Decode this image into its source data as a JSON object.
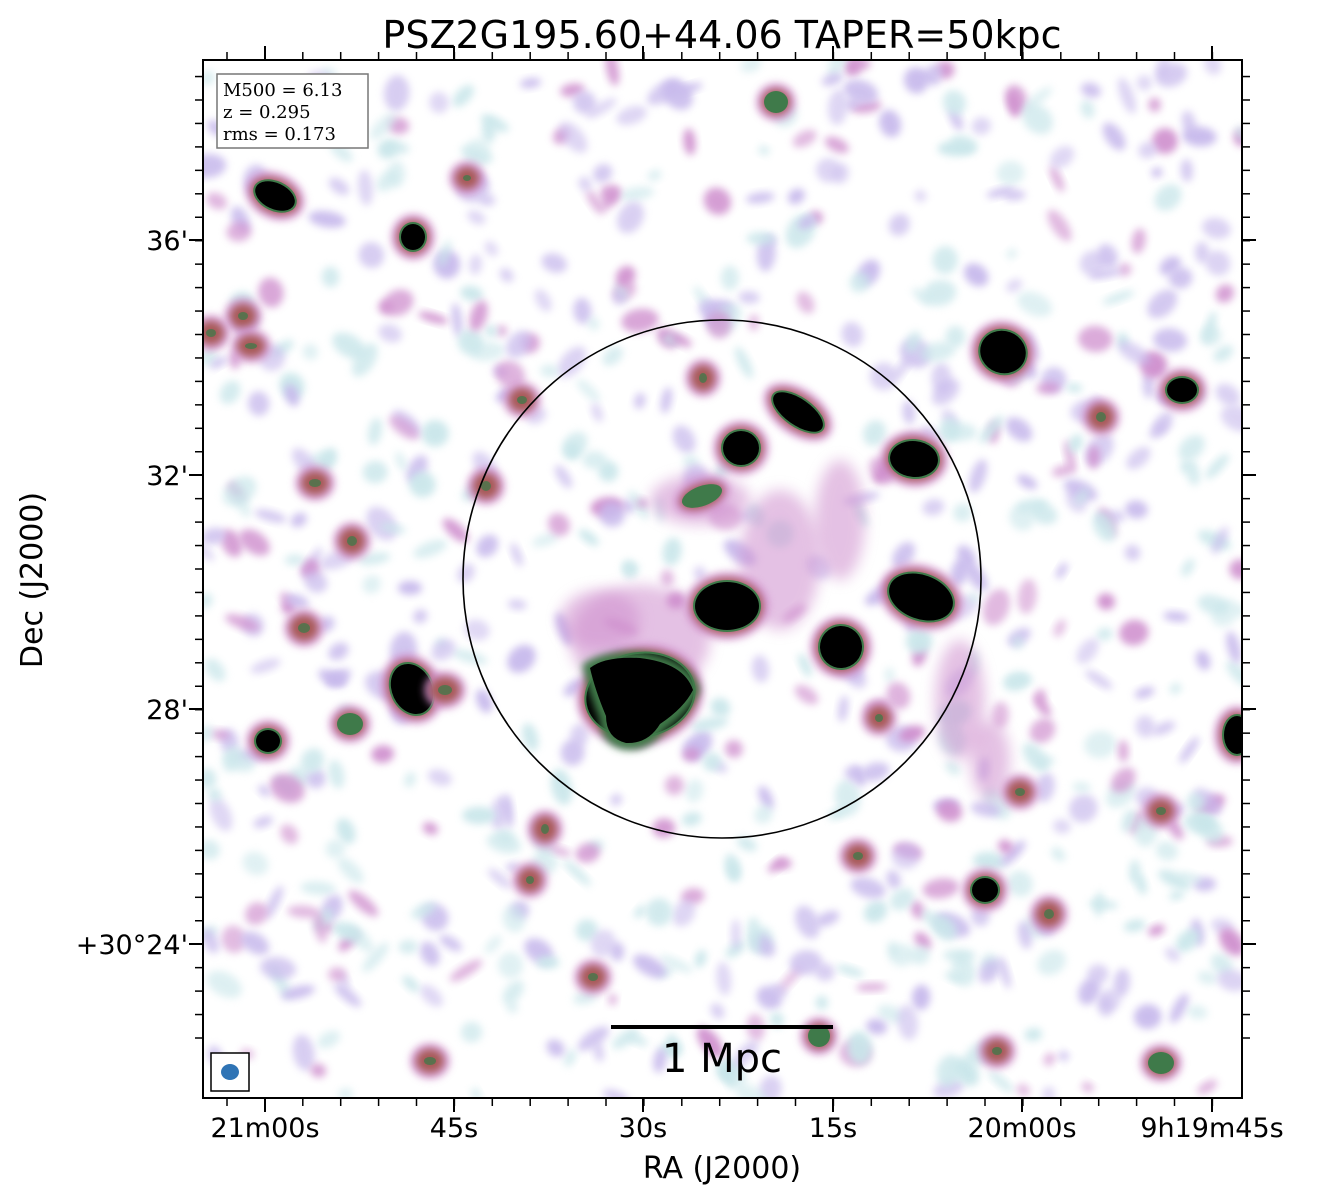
{
  "title": "PSZ2G195.60+44.06 TAPER=50kpc",
  "xlabel": "RA (J2000)",
  "ylabel": "Dec (J2000)",
  "xticks": [
    "21m00s",
    "45s",
    "30s",
    "15s",
    "20m00s",
    "9h19m45s"
  ],
  "yticks": [
    "36'",
    "32'",
    "28'",
    "+30°24'"
  ],
  "info": {
    "m500": "M500 = 6.13",
    "z": "z = 0.295",
    "rms": "rms = 0.173"
  },
  "scalebar_label": "1 Mpc",
  "colors": {
    "faint_cyan": "#c9e6ea",
    "faint_lavender": "#c7b9ec",
    "pink": "#cf8fce",
    "red_brown": "#a85a58",
    "green": "#3f7a4a",
    "core": "#000000",
    "beam": "#2f74b5"
  }
}
